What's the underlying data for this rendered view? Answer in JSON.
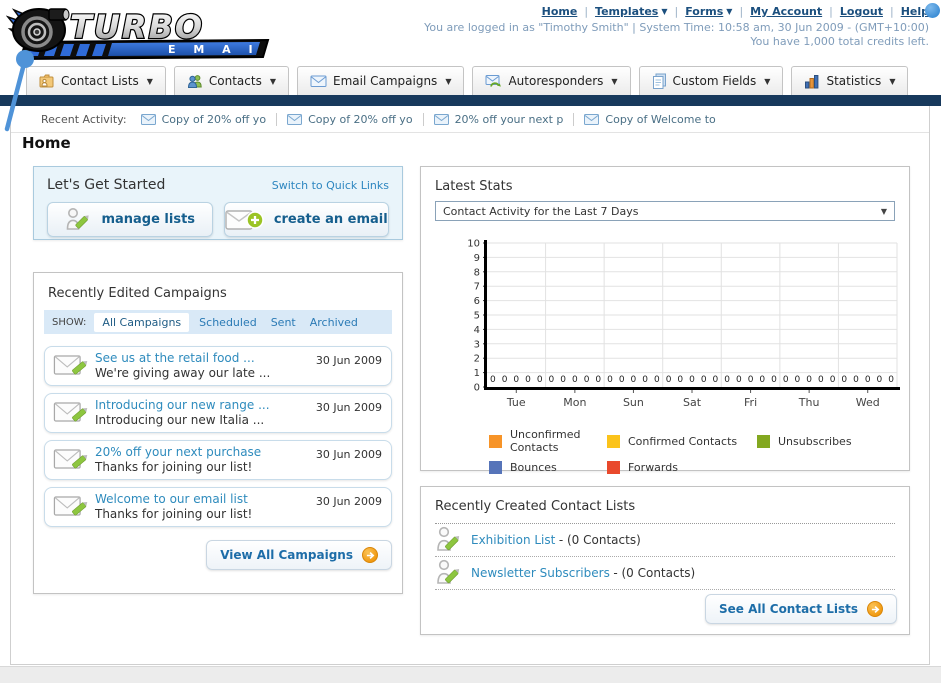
{
  "header": {
    "logo_title": "TURBO",
    "logo_subtitle": "E M A I L",
    "nav": [
      {
        "label": "Home",
        "dropdown": false
      },
      {
        "label": "Templates",
        "dropdown": true
      },
      {
        "label": "Forms",
        "dropdown": true
      },
      {
        "label": "My Account",
        "dropdown": false
      },
      {
        "label": "Logout",
        "dropdown": false
      },
      {
        "label": "Help",
        "dropdown": false
      }
    ],
    "login_line1": "You are logged in as \"Timothy Smith\" | System Time: 10:58 am, 30 Jun 2009 - (GMT+10:00)",
    "login_line2": "You have 1,000 total credits left."
  },
  "tabs": [
    {
      "label": "Contact Lists"
    },
    {
      "label": "Contacts"
    },
    {
      "label": "Email Campaigns"
    },
    {
      "label": "Autoresponders"
    },
    {
      "label": "Custom Fields"
    },
    {
      "label": "Statistics"
    }
  ],
  "recent_activity": {
    "label": "Recent Activity:",
    "items": [
      {
        "text": "Copy of 20% off yo"
      },
      {
        "text": "Copy of 20% off yo"
      },
      {
        "text": "20% off your next p"
      },
      {
        "text": "Copy of Welcome to"
      }
    ]
  },
  "page_title": "Home",
  "get_started": {
    "title": "Let's Get Started",
    "switch_link": "Switch to Quick Links",
    "manage_lists_label": "manage lists",
    "create_email_label": "create an email"
  },
  "campaigns": {
    "title": "Recently Edited Campaigns",
    "show_label": "SHOW:",
    "filters": [
      {
        "label": "All Campaigns",
        "active": true
      },
      {
        "label": "Scheduled",
        "active": false
      },
      {
        "label": "Sent",
        "active": false
      },
      {
        "label": "Archived",
        "active": false
      }
    ],
    "items": [
      {
        "title": "See us at the retail food ...",
        "subtitle": "We're giving away our late ...",
        "date": "30 Jun 2009"
      },
      {
        "title": "Introducing our new range ...",
        "subtitle": "Introducing our new Italia ...",
        "date": "30 Jun 2009"
      },
      {
        "title": "20% off your next purchase",
        "subtitle": "Thanks for joining our list!",
        "date": "30 Jun 2009"
      },
      {
        "title": "Welcome to our email list",
        "subtitle": "Thanks for joining our list!",
        "date": "30 Jun 2009"
      }
    ],
    "view_all_label": "View All Campaigns"
  },
  "stats": {
    "title": "Latest Stats",
    "selected_option": "Contact Activity for the Last 7 Days"
  },
  "chart_data": {
    "type": "bar",
    "title": "Contact Activity for the Last 7 Days",
    "categories": [
      "Tue",
      "Mon",
      "Sun",
      "Sat",
      "Fri",
      "Thu",
      "Wed"
    ],
    "series": [
      {
        "name": "Unconfirmed Contacts",
        "color": "#f79428",
        "values": [
          0,
          0,
          0,
          0,
          0,
          0,
          0
        ]
      },
      {
        "name": "Confirmed Contacts",
        "color": "#fbc31b",
        "values": [
          0,
          0,
          0,
          0,
          0,
          0,
          0
        ]
      },
      {
        "name": "Unsubscribes",
        "color": "#83a820",
        "values": [
          0,
          0,
          0,
          0,
          0,
          0,
          0
        ]
      },
      {
        "name": "Bounces",
        "color": "#5674b9",
        "values": [
          0,
          0,
          0,
          0,
          0,
          0,
          0
        ]
      },
      {
        "name": "Forwards",
        "color": "#e9492c",
        "values": [
          0,
          0,
          0,
          0,
          0,
          0,
          0
        ]
      }
    ],
    "ylim": [
      0,
      10
    ],
    "ytick_step": 1,
    "grid": true,
    "legend_position": "bottom",
    "value_labels_shown": true
  },
  "contact_lists": {
    "title": "Recently Created Contact Lists",
    "items": [
      {
        "name": "Exhibition List",
        "detail": "- (0 Contacts)"
      },
      {
        "name": "Newsletter Subscribers",
        "detail": "- (0 Contacts)"
      }
    ],
    "see_all_label": "See All Contact Lists"
  },
  "colors": {
    "navy_bar": "#17395c",
    "accent_orange": "#f5a51d",
    "link_blue": "#2e8bbd",
    "panel_blue_border": "#a9cade",
    "get_started_bg": "#e9f4fa"
  }
}
